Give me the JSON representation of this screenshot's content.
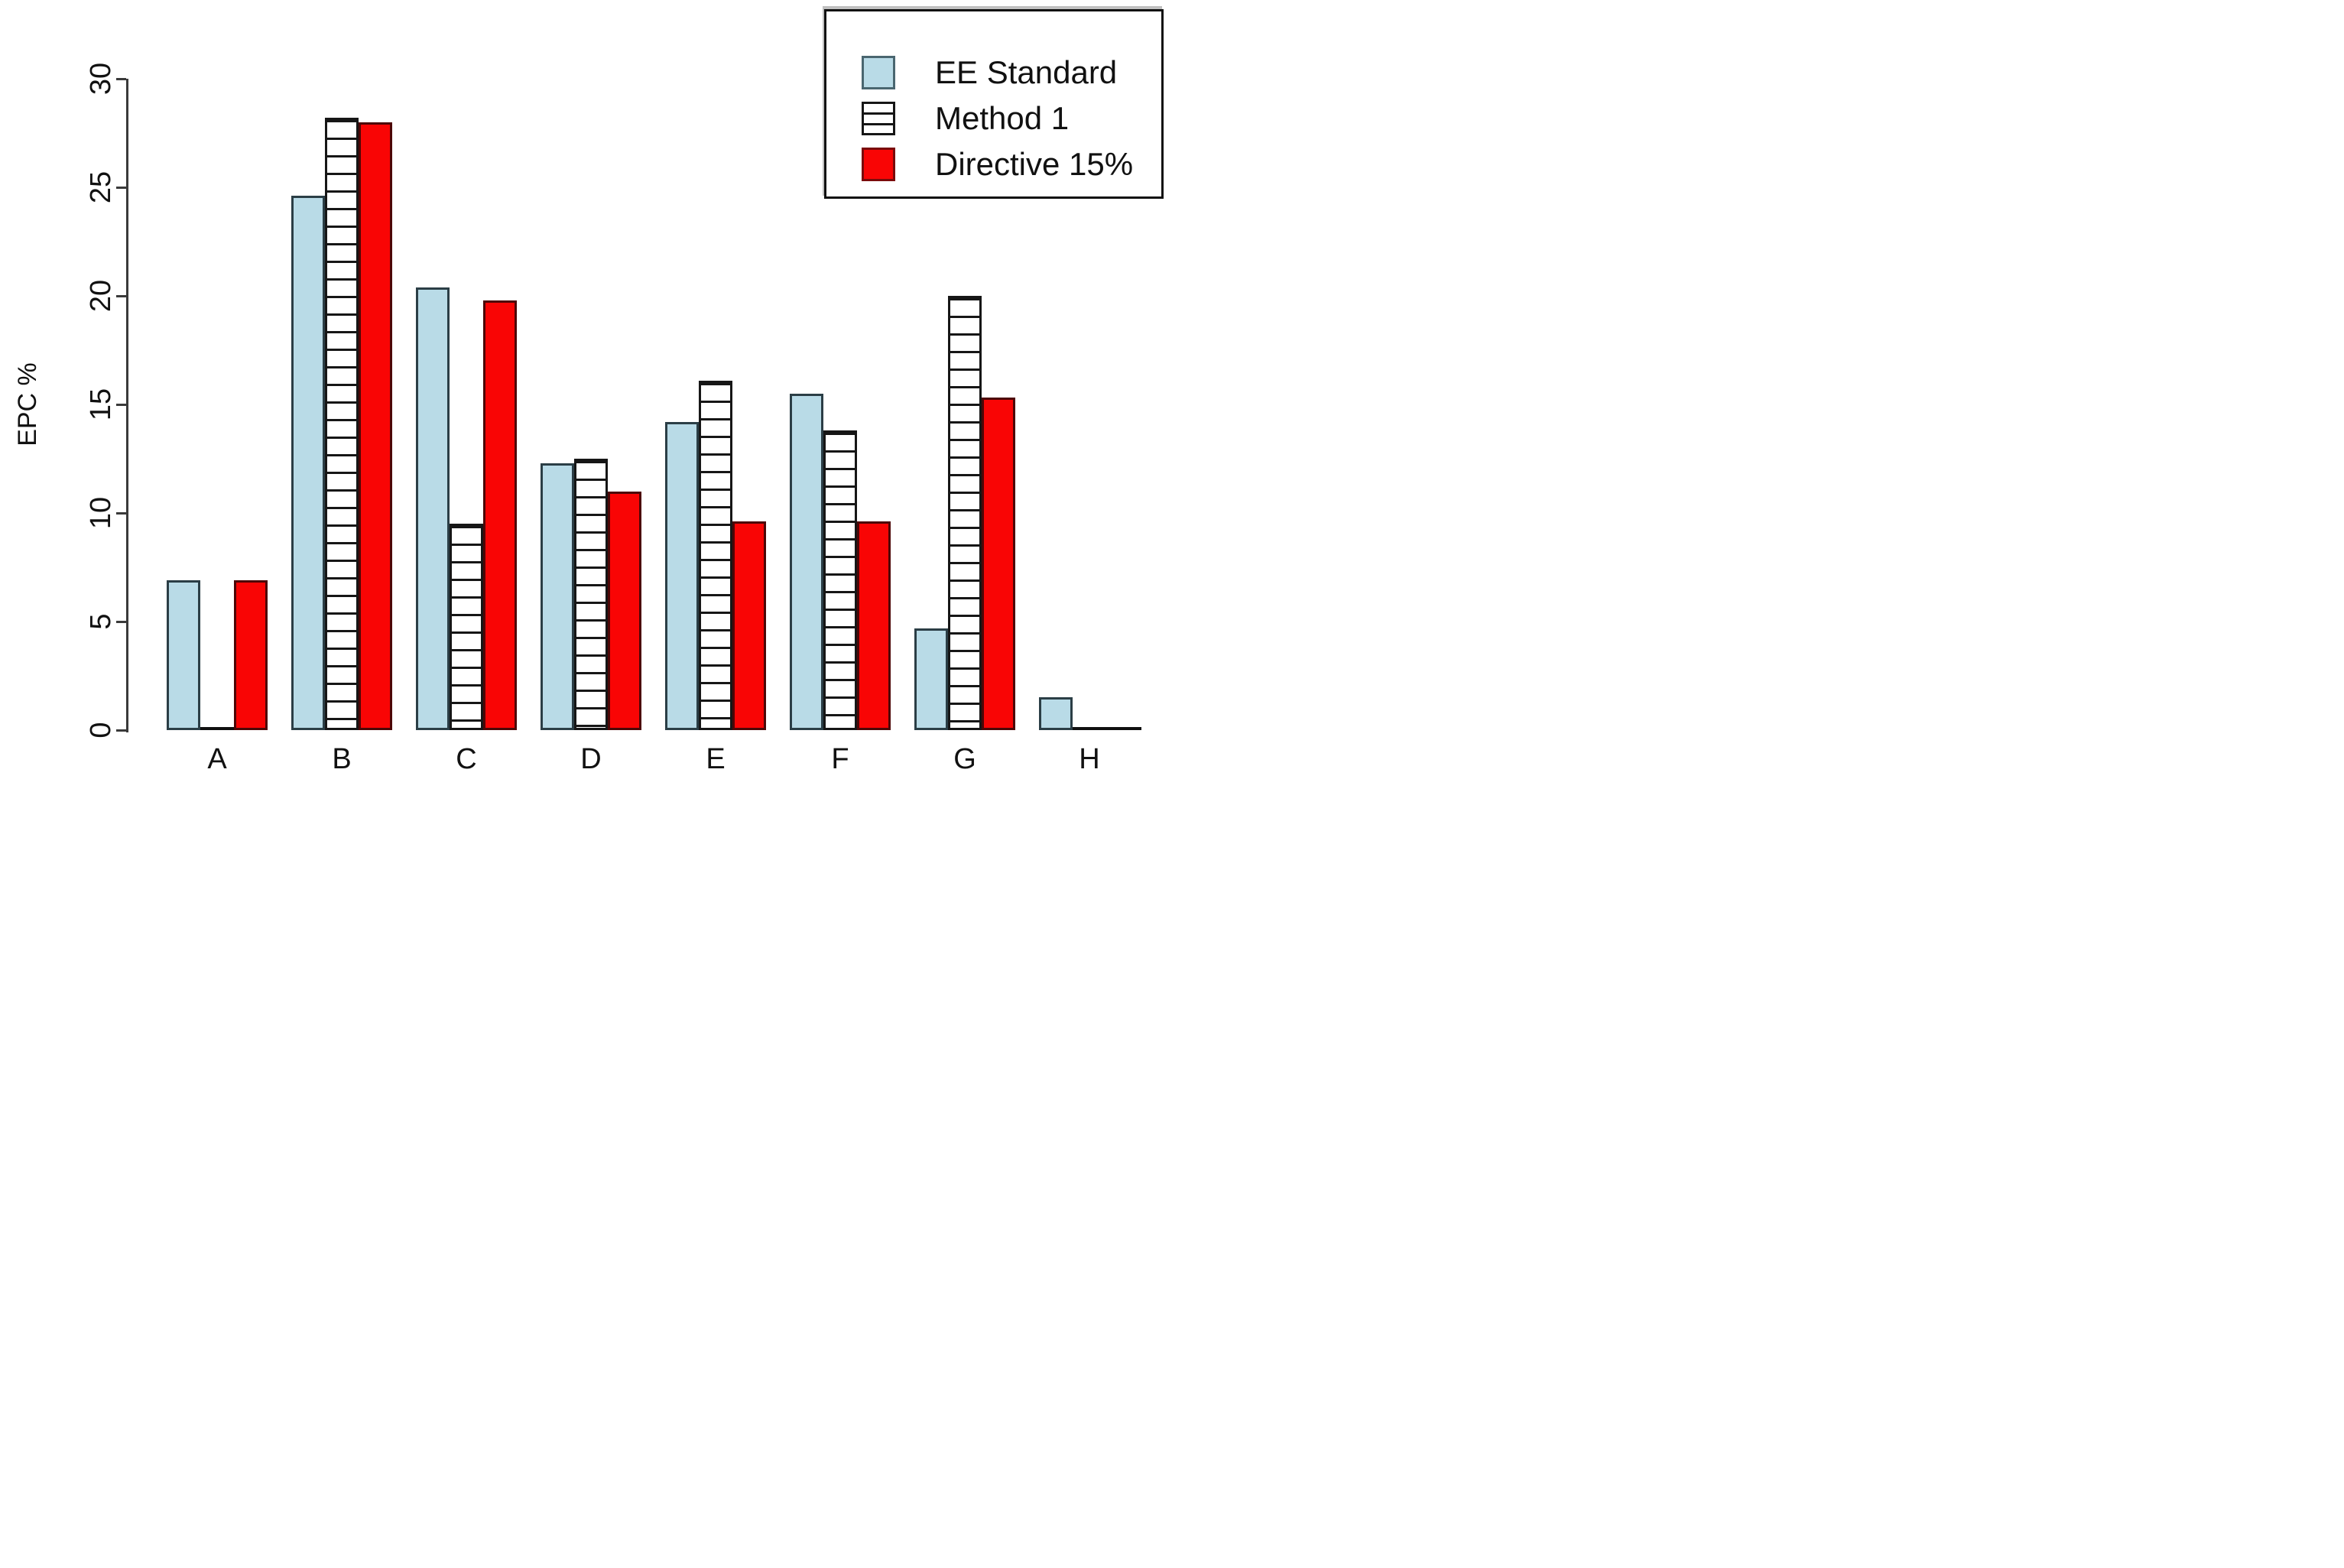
{
  "chart_data": {
    "type": "bar",
    "title": "",
    "xlabel": "",
    "ylabel": "EPC %",
    "ylim": [
      0,
      30
    ],
    "yticks": [
      0,
      5,
      10,
      15,
      20,
      25,
      30
    ],
    "grid": false,
    "legend_position": "top-right",
    "categories": [
      "A",
      "B",
      "C",
      "D",
      "E",
      "F",
      "G",
      "H"
    ],
    "series": [
      {
        "name": "EE Standard",
        "style": "solid-lightblue",
        "color": "#b9dbe7",
        "values": [
          6.9,
          24.6,
          20.4,
          12.3,
          14.2,
          15.5,
          4.7,
          1.5
        ]
      },
      {
        "name": "Method 1",
        "style": "hatched-horizontal-white",
        "color": "#ffffff",
        "values": [
          0,
          28.2,
          9.5,
          12.5,
          16.1,
          13.8,
          20.0,
          0
        ]
      },
      {
        "name": "Directive 15%",
        "style": "solid-red",
        "color": "#f90505",
        "values": [
          6.9,
          28.0,
          19.8,
          11.0,
          9.6,
          9.6,
          15.3,
          0
        ]
      }
    ]
  }
}
